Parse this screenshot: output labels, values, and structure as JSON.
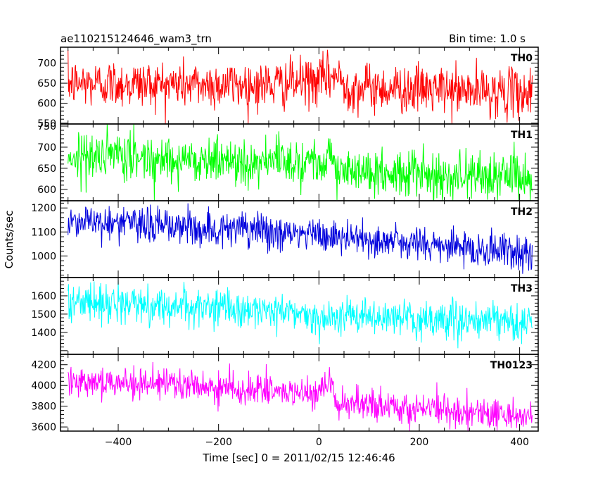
{
  "title_left": "ae110215124646_wam3_trn",
  "title_right": "Bin time: 1.0 s",
  "xlabel": "Time [sec] 0 = 2011/02/15 12:46:46",
  "ylabel": "Counts/sec",
  "x_ticks": [
    -400,
    -200,
    0,
    200,
    400
  ],
  "xlim": [
    -515,
    437
  ],
  "chart_data": {
    "type": "line",
    "title": "ae110215124646_wam3_trn",
    "subtitle": "Bin time: 1.0 s",
    "xlabel": "Time [sec] 0 = 2011/02/15 12:46:46",
    "ylabel": "Counts/sec",
    "xlim": [
      -515,
      437
    ],
    "x_range": [
      -500,
      425
    ],
    "bin_time_s": 1.0,
    "grid": false,
    "legend": "none",
    "panels": [
      {
        "name": "TH0",
        "color": "#ff0000",
        "ylim": [
          548,
          740
        ],
        "y_ticks": [
          550,
          600,
          650,
          700
        ],
        "trend": [
          [
            -500,
            650
          ],
          [
            -100,
            645
          ],
          [
            0,
            655
          ],
          [
            30,
            670
          ],
          [
            60,
            640
          ],
          [
            425,
            625
          ]
        ],
        "noise_sd": 30,
        "range": [
          548,
          740
        ]
      },
      {
        "name": "TH1",
        "color": "#00ff00",
        "ylim": [
          573,
          755
        ],
        "y_ticks": [
          600,
          650,
          700,
          750
        ],
        "trend": [
          [
            -500,
            680
          ],
          [
            -100,
            665
          ],
          [
            0,
            670
          ],
          [
            25,
            690
          ],
          [
            35,
            640
          ],
          [
            425,
            630
          ]
        ],
        "noise_sd": 28,
        "range": [
          573,
          755
        ]
      },
      {
        "name": "TH2",
        "color": "#0000dd",
        "ylim": [
          910,
          1230
        ],
        "y_ticks": [
          1000,
          1100,
          1200
        ],
        "trend": [
          [
            -500,
            1150
          ],
          [
            -100,
            1100
          ],
          [
            0,
            1085
          ],
          [
            425,
            1010
          ]
        ],
        "noise_sd": 38,
        "range": [
          910,
          1230
        ]
      },
      {
        "name": "TH3",
        "color": "#00ffff",
        "ylim": [
          1280,
          1700
        ],
        "y_ticks": [
          1400,
          1500,
          1600
        ],
        "trend": [
          [
            -500,
            1570
          ],
          [
            -100,
            1520
          ],
          [
            0,
            1490
          ],
          [
            425,
            1450
          ]
        ],
        "noise_sd": 50,
        "range": [
          1280,
          1700
        ]
      },
      {
        "name": "TH0123",
        "color": "#ff00ff",
        "ylim": [
          3560,
          4300
        ],
        "y_ticks": [
          3600,
          3800,
          4000,
          4200
        ],
        "trend": [
          [
            -500,
            4060
          ],
          [
            -100,
            3950
          ],
          [
            0,
            3900
          ],
          [
            25,
            4020
          ],
          [
            35,
            3820
          ],
          [
            200,
            3780
          ],
          [
            425,
            3700
          ]
        ],
        "noise_sd": 75,
        "range": [
          3560,
          4300
        ]
      }
    ]
  }
}
